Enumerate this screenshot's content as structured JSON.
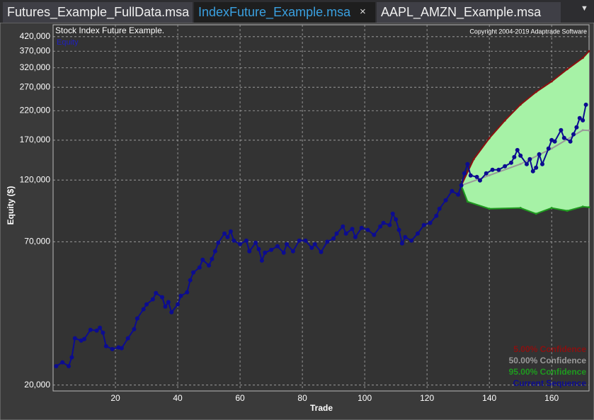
{
  "tabs": [
    "Futures_Example_FullData.msa",
    "IndexFuture_Example.msa",
    "AAPL_AMZN_Example.msa"
  ],
  "chart_data": {
    "type": "line",
    "title": "Stock Index Future Example.",
    "copyright": "Copyright 2004-2019 Adaptrade Software",
    "corner_label": "Equity",
    "x_label": "Trade",
    "y_label": "Equity ($)",
    "log_scale": true,
    "grid": true,
    "legend": "lower right",
    "xlim": [
      0,
      172
    ],
    "xticks": [
      20,
      40,
      60,
      80,
      100,
      120,
      140,
      160
    ],
    "ylim": [
      19000,
      466000
    ],
    "yticks": [
      {
        "value": 20000,
        "label": "20,000"
      },
      {
        "value": 70000,
        "label": "70,000"
      },
      {
        "value": 120000,
        "label": "120,000"
      },
      {
        "value": 170000,
        "label": "170,000"
      },
      {
        "value": 220000,
        "label": "220,000"
      },
      {
        "value": 270000,
        "label": "270,000"
      },
      {
        "value": 320000,
        "label": "320,000"
      },
      {
        "value": 370000,
        "label": "370,000"
      },
      {
        "value": 420000,
        "label": "420,000"
      }
    ],
    "band_color": "#a6f2a6",
    "series": [
      {
        "name": "5.00% Confidence",
        "color": "#8b1010",
        "x": [
          131,
          135,
          140,
          145,
          150,
          155,
          160,
          165,
          170,
          172
        ],
        "values": [
          114500,
          144000,
          173000,
          202000,
          232000,
          259000,
          284000,
          316000,
          349000,
          370000
        ]
      },
      {
        "name": "50.00% Confidence",
        "color": "#9a9a9a",
        "x": [
          131,
          140,
          150,
          160,
          170,
          172
        ],
        "values": [
          114500,
          125000,
          138000,
          158000,
          185600,
          185000
        ]
      },
      {
        "name": "95.00% Confidence",
        "color": "#1f9a1f",
        "x": [
          131,
          133,
          140,
          150,
          155,
          160,
          165,
          170,
          172
        ],
        "values": [
          114500,
          99400,
          93400,
          94000,
          89400,
          94000,
          91700,
          95100,
          94600
        ]
      },
      {
        "name": "Current Sequence",
        "color": "#0c0c90",
        "markers": true,
        "x": [
          1,
          3,
          5,
          6,
          7,
          9,
          10,
          12,
          14,
          15,
          16,
          17,
          19,
          21,
          22,
          24,
          26,
          27,
          29,
          30,
          32,
          33,
          35,
          36,
          37,
          38,
          40,
          41,
          43,
          44,
          45,
          47,
          48,
          50,
          51,
          52,
          53,
          55,
          56,
          57,
          58,
          60,
          62,
          63,
          65,
          66,
          67,
          68,
          70,
          72,
          74,
          75,
          77,
          79,
          81,
          83,
          84,
          86,
          88,
          90,
          91,
          93,
          94,
          96,
          97,
          99,
          101,
          103,
          105,
          106,
          108,
          109,
          110,
          111,
          112,
          113,
          115,
          117,
          119,
          121,
          123,
          124,
          126,
          128,
          130,
          131,
          132,
          133,
          134,
          136,
          137,
          139,
          141,
          143,
          145,
          147,
          148,
          149,
          150,
          152,
          153,
          154,
          155,
          156,
          157,
          159,
          160,
          161,
          163,
          164,
          166,
          167,
          168,
          169,
          170,
          171
        ],
        "values": [
          23600,
          24400,
          23600,
          25500,
          30100,
          29500,
          29900,
          32400,
          32200,
          33000,
          31600,
          28100,
          27400,
          27800,
          27600,
          30100,
          32600,
          35800,
          38800,
          40500,
          42300,
          44700,
          43100,
          39700,
          41300,
          37800,
          40500,
          43600,
          45000,
          50000,
          53500,
          55900,
          59800,
          56900,
          60200,
          64400,
          69400,
          75200,
          72900,
          76600,
          70700,
          68500,
          70700,
          64400,
          69400,
          65600,
          59400,
          63600,
          65200,
          67300,
          63600,
          68500,
          64400,
          70700,
          70700,
          66400,
          68500,
          64000,
          70000,
          72000,
          75200,
          80000,
          75200,
          78300,
          72900,
          79000,
          77600,
          74300,
          80000,
          82500,
          81000,
          89400,
          85100,
          77600,
          69000,
          72900,
          70700,
          75200,
          81000,
          82500,
          87800,
          93400,
          100600,
          109000,
          105700,
          114500,
          127200,
          137900,
          124900,
          123300,
          119600,
          127200,
          131200,
          131200,
          135400,
          139600,
          146700,
          156000,
          148500,
          137900,
          144000,
          129600,
          133700,
          150300,
          137900,
          158000,
          170200,
          168100,
          185600,
          173400,
          168100,
          178900,
          190200,
          206200,
          202300,
          231800
        ]
      }
    ]
  }
}
